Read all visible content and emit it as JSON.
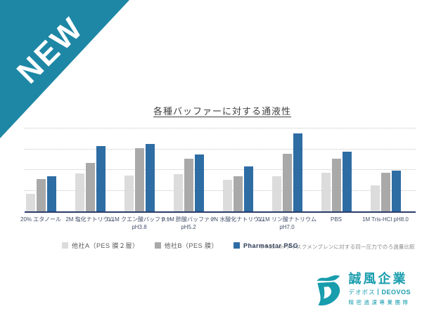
{
  "ribbon": {
    "label": "NEW",
    "color": "#1E87A5"
  },
  "chart_data": {
    "type": "bar",
    "title": "各種バッファーに対する通液性",
    "categories": [
      "20% エタノール",
      "2M 塩化ナトリウム",
      "0.1M クエン酸バッファー\npH3.8",
      "0.1M 酢酸バッファー\npH5.2",
      "2N 水酸化ナトリウム",
      "0.1M リン酸ナトリウム\npH7.0",
      "PBS",
      "1M Tris-HCl pH8.0"
    ],
    "series": [
      {
        "name": "他社A（PES 膜２層）",
        "color": "#DCDCDC",
        "emphasis": false,
        "values": [
          0.86,
          1.82,
          1.74,
          1.79,
          1.53,
          1.71,
          1.85,
          1.25
        ]
      },
      {
        "name": "他社B（PES 膜）",
        "color": "#A9A9A9",
        "emphasis": false,
        "values": [
          1.57,
          2.35,
          3.06,
          2.55,
          1.68,
          2.78,
          2.55,
          1.85
        ]
      },
      {
        "name": "Pharmastar PSG",
        "color": "#2E6DA4",
        "emphasis": true,
        "values": [
          1.7,
          3.14,
          3.27,
          2.75,
          2.16,
          3.75,
          2.89,
          1.96
        ]
      }
    ],
    "xlabel": "",
    "ylabel": "",
    "ylim": [
      0,
      4.34
    ],
    "gridlines": [
      1,
      2,
      3,
      4
    ],
    "grid": "horizontal-dotted",
    "y_axis_tick_labels_visible": false,
    "legend_position": "bottom"
  },
  "footnote": "※Φ25mm ディスクメンブレンに対する同一圧力でのろ過量比較",
  "logo": {
    "company": "誠風企業",
    "brand_jp": "デオボス",
    "brand_en": "DEOVOS",
    "tagline": "精密過濾專業團隊",
    "color": "#189DAD"
  }
}
